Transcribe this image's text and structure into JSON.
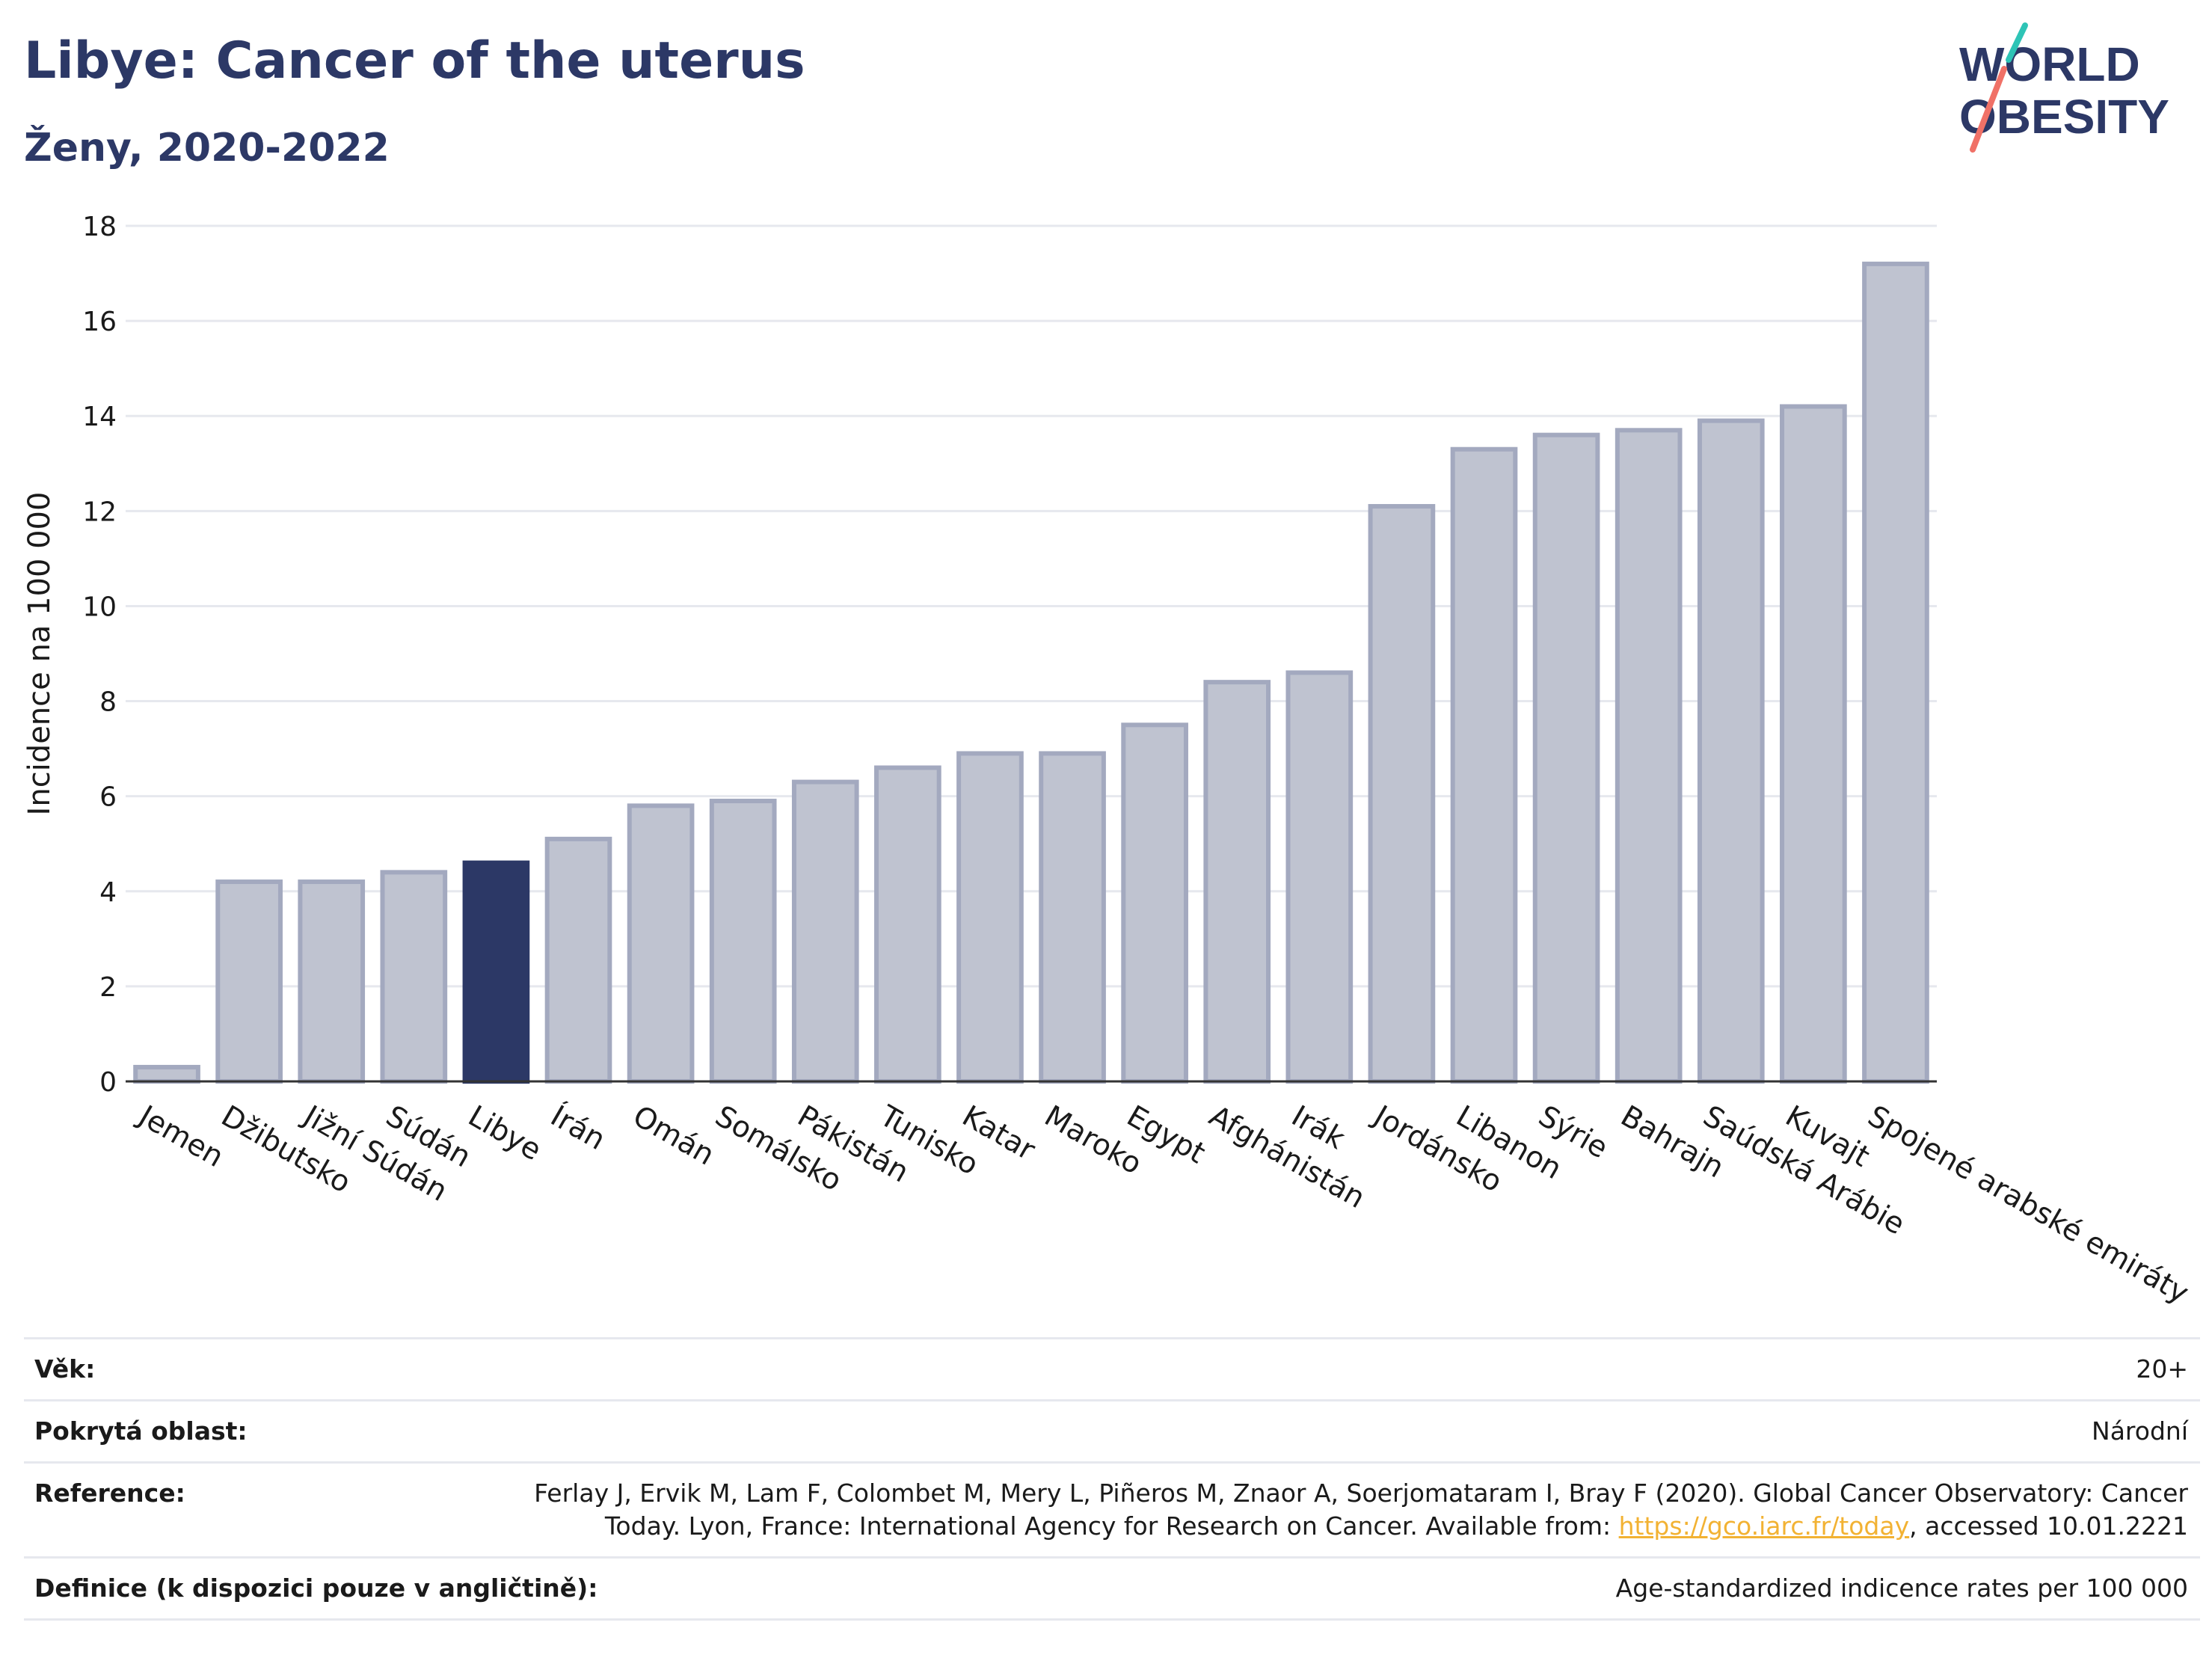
{
  "header": {
    "title": "Libye: Cancer of the uterus",
    "subtitle": "Ženy, 2020-2022"
  },
  "logo": {
    "line1": "WORLD",
    "line2": "OBESITY"
  },
  "colors": {
    "highlight": "#2c3866",
    "bar_fill": "#bfc3d0",
    "bar_stroke": "#a3a9bf",
    "grid": "#e6e8ee",
    "axis": "#333333",
    "logo_navy": "#2c3866",
    "logo_teal": "#2ec4b6",
    "logo_coral": "#f07167"
  },
  "chart_data": {
    "type": "bar",
    "ylabel": "Incidence na 100 000",
    "xlabel": "",
    "ylim": [
      0,
      18
    ],
    "yticks": [
      0,
      2,
      4,
      6,
      8,
      10,
      12,
      14,
      16,
      18
    ],
    "grid": true,
    "highlight_category": "Libye",
    "categories": [
      "Jemen",
      "Džibutsko",
      "Jižní Súdán",
      "Súdán",
      "Libye",
      "Írán",
      "Omán",
      "Somálsko",
      "Pákistán",
      "Tunisko",
      "Katar",
      "Maroko",
      "Egypt",
      "Afghánistán",
      "Irák",
      "Jordánsko",
      "Libanon",
      "Sýrie",
      "Bahrajn",
      "Saúdská Arábie",
      "Kuvajt",
      "Spojené arabské emiráty"
    ],
    "values": [
      0.3,
      4.2,
      4.2,
      4.4,
      4.6,
      5.1,
      5.8,
      5.9,
      6.3,
      6.6,
      6.9,
      6.9,
      7.5,
      8.4,
      8.6,
      12.1,
      13.3,
      13.6,
      13.7,
      13.9,
      14.2,
      17.2
    ]
  },
  "info": {
    "age_label": "Věk:",
    "age_value": "20+",
    "coverage_label": "Pokrytá oblast:",
    "coverage_value": "Národní",
    "reference_label": "Reference:",
    "reference_text_before": "Ferlay J, Ervik M, Lam F, Colombet M, Mery L, Piñeros M, Znaor A, Soerjomataram I, Bray F (2020). Global Cancer Observatory: Cancer Today. Lyon, France: International Agency for Research on Cancer. Available from: ",
    "reference_link": "https://gco.iarc.fr/today",
    "reference_text_after": ", accessed 10.01.2221",
    "definition_label": "Definice (k dispozici pouze v angličtině):",
    "definition_value": "Age-standardized indicence rates per 100 000"
  }
}
